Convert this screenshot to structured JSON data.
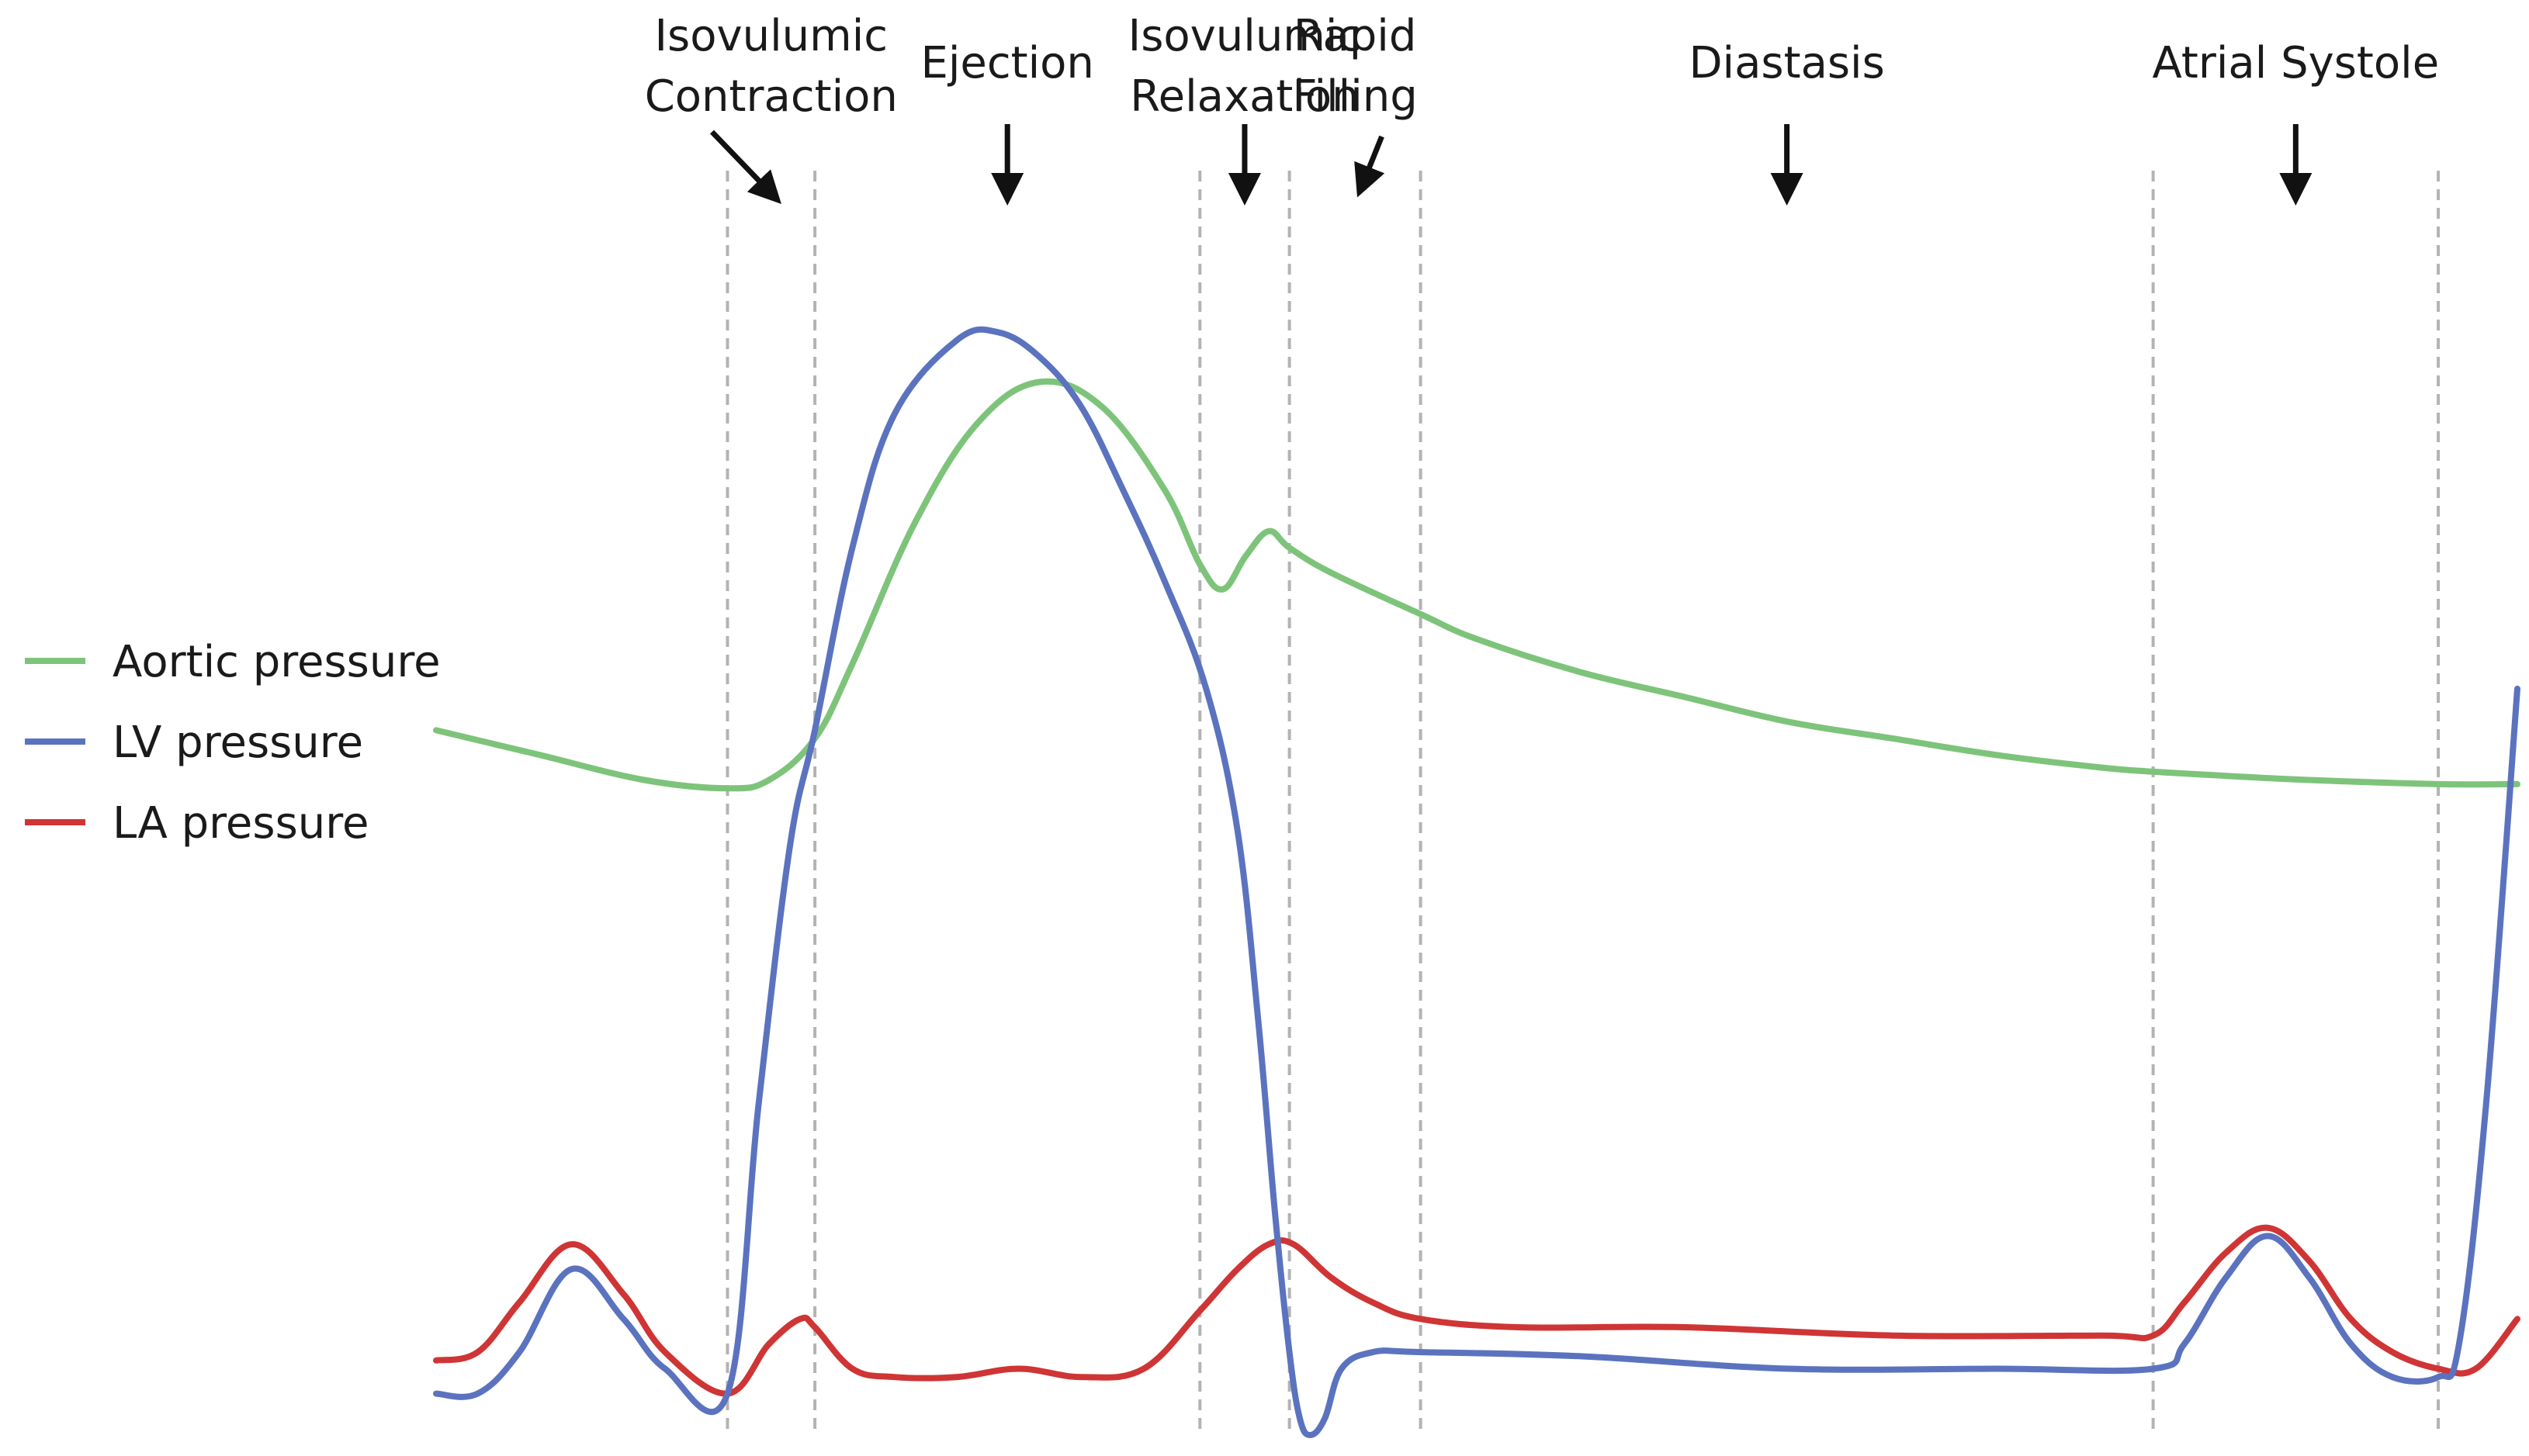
{
  "chart_data": {
    "type": "line",
    "title": "",
    "xlabel": "",
    "ylabel": "",
    "grid": false,
    "legend_position": "left",
    "xlim": [
      0,
      100
    ],
    "ylim": [
      -5,
      140
    ],
    "phases": [
      {
        "label_lines": [
          "Isovulumic",
          "Contraction"
        ],
        "start": 14.0,
        "end": 18.2
      },
      {
        "label_lines": [
          "Ejection"
        ],
        "start": 18.2,
        "end": 36.7
      },
      {
        "label_lines": [
          "Isovulumic",
          "Relaxation"
        ],
        "start": 36.7,
        "end": 41.0
      },
      {
        "label_lines": [
          "Rapid",
          "Filling"
        ],
        "start": 41.0,
        "end": 47.3
      },
      {
        "label_lines": [
          "Diastasis"
        ],
        "start": 47.3,
        "end": 82.5
      },
      {
        "label_lines": [
          "Atrial Systole"
        ],
        "start": 82.5,
        "end": 96.2
      }
    ],
    "series": [
      {
        "name": "Aortic pressure",
        "color": "#7dc47a",
        "x": [
          0,
          5,
          10,
          14,
          16,
          18.2,
          20,
          23,
          26,
          29,
          32,
          35,
          36.7,
          37.8,
          38.9,
          40,
          41,
          43,
          47.3,
          50,
          55,
          60,
          65,
          70,
          75,
          80,
          82.5,
          86,
          90,
          96.2,
          100
        ],
        "y": [
          80,
          77,
          74,
          73,
          74,
          79,
          88,
          105,
          117,
          122,
          119,
          109,
          100,
          97,
          101,
          104,
          102,
          99,
          94,
          91,
          87,
          84,
          81,
          79,
          77,
          75.5,
          75,
          74.5,
          74,
          73.5,
          73.5
        ]
      },
      {
        "name": "LV pressure",
        "color": "#5b73bf",
        "x": [
          0,
          2,
          4,
          6.5,
          9,
          11,
          14,
          15.5,
          17,
          18.2,
          20,
          22,
          25,
          27,
          29,
          31,
          33,
          35,
          37,
          38.5,
          39.5,
          40.3,
          41,
          41.5,
          42,
          42.7,
          43.5,
          45,
          47.3,
          55,
          65,
          75,
          82.5,
          84,
          86,
          88,
          90,
          92,
          94,
          96.2,
          97.2,
          98.5,
          100
        ],
        "y": [
          0,
          0,
          5,
          15,
          9,
          3,
          0,
          35,
          66,
          80,
          102,
          118,
          127,
          128,
          125,
          119,
          109,
          98,
          85,
          68,
          45,
          22,
          5,
          -3,
          -5,
          -3,
          3,
          5,
          5,
          4.5,
          3,
          3,
          3,
          6,
          14,
          19,
          14,
          6,
          2,
          2,
          6,
          35,
          85
        ]
      },
      {
        "name": "LA pressure",
        "color": "#cf3535",
        "x": [
          0,
          2,
          4,
          6.5,
          9,
          11,
          14,
          16,
          17.5,
          18.2,
          20,
          22,
          25,
          28,
          31,
          34,
          36.7,
          38.5,
          40,
          41.2,
          43,
          45,
          47.3,
          52,
          60,
          70,
          80,
          82.5,
          84,
          86,
          88,
          90,
          92,
          94,
          96.2,
          98,
          100
        ],
        "y": [
          4,
          5,
          11,
          18,
          12,
          5,
          0,
          6,
          9,
          8,
          3,
          2,
          2,
          3,
          2,
          3,
          10,
          15,
          18,
          18,
          14,
          11,
          9,
          8,
          8,
          7,
          7,
          7,
          11,
          17,
          20,
          16,
          9,
          5,
          3,
          3,
          9
        ]
      }
    ]
  }
}
